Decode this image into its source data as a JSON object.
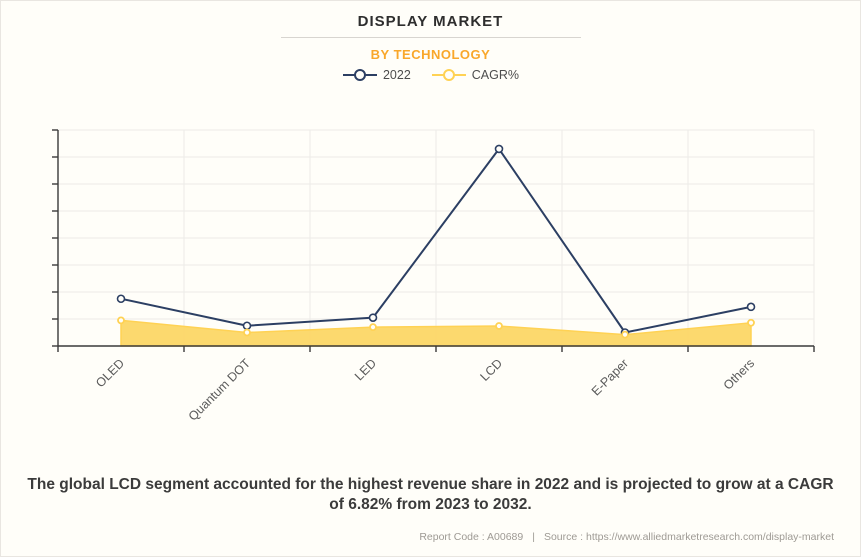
{
  "header": {
    "title": "DISPLAY MARKET",
    "subtitle": "BY TECHNOLOGY"
  },
  "chart_data": {
    "type": "line",
    "title": "DISPLAY MARKET",
    "subtitle": "BY TECHNOLOGY",
    "categories": [
      "OLED",
      "Quantum DOT",
      "LED",
      "LCD",
      "E-Paper",
      "Others"
    ],
    "series": [
      {
        "name": "2022",
        "style": "line",
        "color": "#2C3F63",
        "values": [
          1.75,
          0.75,
          1.05,
          7.3,
          0.5,
          1.45
        ]
      },
      {
        "name": "CAGR%",
        "style": "area",
        "color": "#FFD254",
        "fill": "#FCD766",
        "values": [
          0.95,
          0.5,
          0.7,
          0.74,
          0.42,
          0.86
        ]
      }
    ],
    "ylim": [
      0,
      8
    ],
    "y_tick_count": 8,
    "y_tick_labels": "none",
    "grid": "on",
    "legend_position": "top",
    "note": "y-axis shows tick marks without numeric labels; series values estimated in gridline units from pixel positions"
  },
  "summary": {
    "text": "The global LCD segment accounted for the highest revenue share in 2022 and is projected to grow at a CAGR of 6.82% from 2023 to 2032."
  },
  "footer": {
    "report_code": "Report Code : A00689",
    "separator": "|",
    "source": "Source : https://www.alliedmarketresearch.com/display-market"
  },
  "colors": {
    "accent_orange": "#F9A72B",
    "series_2022": "#2C3F63",
    "series_cagr_stroke": "#FFD254",
    "series_cagr_fill": "#FCD766",
    "axis": "#3A3A3A",
    "gridline": "#ECEBE7",
    "background": "#FFFEF9"
  }
}
